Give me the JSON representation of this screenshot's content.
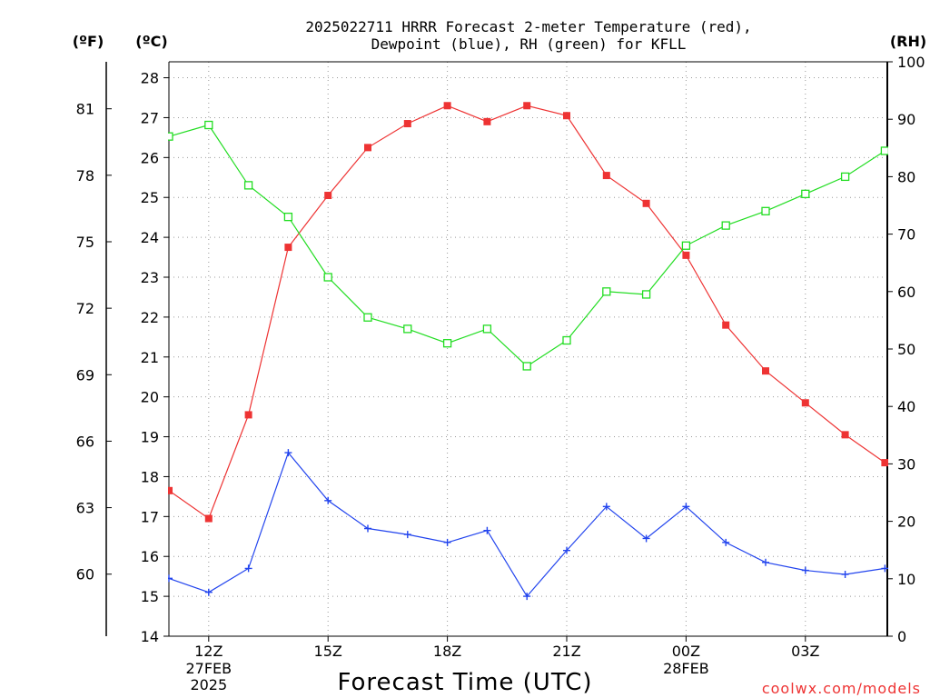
{
  "chart_data": {
    "type": "line",
    "title_line1": "2025022711 HRRR Forecast 2-meter Temperature (red),",
    "title_line2": "Dewpoint (blue), RH (green) for KFLL",
    "xlabel": "Forecast Time (UTC)",
    "left_outer_label": "(ºF)",
    "left_inner_label": "(ºC)",
    "right_label": "(RH)",
    "watermark": "coolwx.com/models",
    "ylim_c": [
      14,
      28.4
    ],
    "ylim_rh": [
      0,
      100
    ],
    "y_ticks_c": [
      "14",
      "15",
      "16",
      "17",
      "18",
      "19",
      "20",
      "21",
      "22",
      "23",
      "24",
      "25",
      "26",
      "27",
      "28"
    ],
    "y_ticks_f": [
      "60",
      "63",
      "66",
      "69",
      "72",
      "75",
      "78",
      "81"
    ],
    "y_ticks_rh": [
      "0",
      "10",
      "20",
      "30",
      "40",
      "50",
      "60",
      "70",
      "80",
      "90",
      "100"
    ],
    "x_ticks": [
      {
        "label": "12Z",
        "sub1": "27FEB",
        "sub2": "2025"
      },
      {
        "label": "15Z",
        "sub1": "",
        "sub2": ""
      },
      {
        "label": "18Z",
        "sub1": "",
        "sub2": ""
      },
      {
        "label": "21Z",
        "sub1": "",
        "sub2": ""
      },
      {
        "label": "00Z",
        "sub1": "28FEB",
        "sub2": ""
      },
      {
        "label": "03Z",
        "sub1": "",
        "sub2": ""
      }
    ],
    "x": [
      "11Z",
      "12Z",
      "13Z",
      "14Z",
      "15Z",
      "16Z",
      "17Z",
      "18Z",
      "19Z",
      "20Z",
      "21Z",
      "22Z",
      "23Z",
      "00Z",
      "01Z",
      "02Z",
      "03Z",
      "04Z",
      "05Z"
    ],
    "grid": true,
    "series": [
      {
        "name": "Temperature",
        "axis": "C",
        "color": "#ee3333",
        "marker": "filled-square",
        "values": [
          17.65,
          16.95,
          19.55,
          23.75,
          25.05,
          26.25,
          26.85,
          27.3,
          26.9,
          27.3,
          27.05,
          25.55,
          24.85,
          23.55,
          21.8,
          20.65,
          19.85,
          19.05,
          18.35
        ]
      },
      {
        "name": "Dewpoint",
        "axis": "C",
        "color": "#2244ee",
        "marker": "plus",
        "values": [
          15.45,
          15.1,
          15.7,
          18.6,
          17.4,
          16.7,
          16.55,
          16.35,
          16.65,
          15.0,
          16.15,
          17.25,
          16.45,
          17.25,
          16.35,
          15.85,
          15.65,
          15.55,
          15.7
        ]
      },
      {
        "name": "RH",
        "axis": "RH",
        "color": "#22dd22",
        "marker": "open-square",
        "values": [
          87,
          89,
          78.5,
          73,
          62.5,
          55.5,
          53.5,
          51,
          53.5,
          47,
          51.5,
          60,
          59.5,
          68,
          71.5,
          74,
          77,
          80,
          84.5
        ]
      }
    ]
  }
}
